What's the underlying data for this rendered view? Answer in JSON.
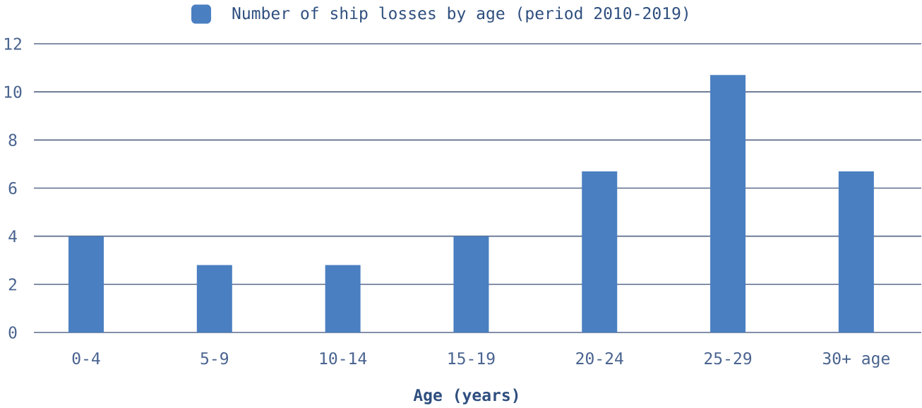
{
  "chart_data": {
    "type": "bar",
    "xlabel": "Age (years)",
    "categories": [
      "0-4",
      "5-9",
      "10-14",
      "15-19",
      "20-24",
      "25-29",
      "30+ age"
    ],
    "series": [
      {
        "name": "Number of ship losses by age (period 2010-2019)",
        "color": "#4a7fc1",
        "values": [
          4,
          2.8,
          2.8,
          4,
          6.7,
          10.7,
          6.7
        ]
      }
    ],
    "ylim": [
      0,
      12
    ],
    "yticks": [
      0,
      2,
      4,
      6,
      8,
      10,
      12
    ],
    "grid": "y",
    "legend": "top"
  }
}
